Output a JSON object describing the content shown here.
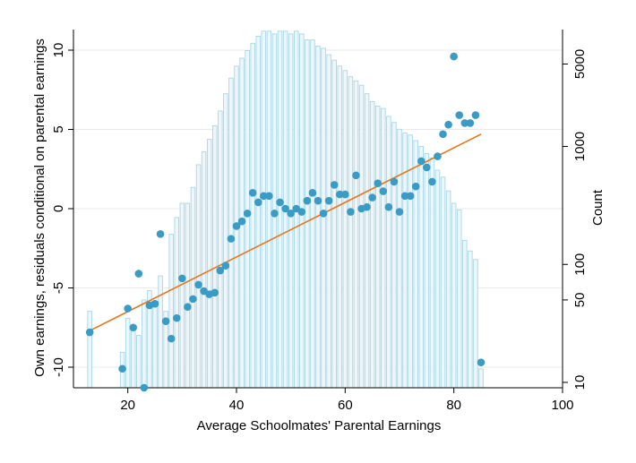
{
  "chart_data": {
    "type": "scatter",
    "title": "",
    "xlabel": "Average Schoolmates' Parental Earnings",
    "ylabel": "Own earnings, residuals conditional on parental earnings",
    "y2label": "Count",
    "xlim": [
      10,
      100
    ],
    "ylim": [
      -11.3,
      11.3
    ],
    "y2scale": "log",
    "y2lim": [
      9,
      9800
    ],
    "grid": true,
    "legend": "none",
    "colors": {
      "points": "#3a9bc4",
      "fit_line": "#e8761e",
      "hist_fill": "#edf7fb",
      "hist_edge": "#a9d6e6",
      "grid": "#eaeaea",
      "axis": "#000000"
    },
    "x_ticks": [
      "20",
      "40",
      "60",
      "80",
      "100"
    ],
    "y_ticks": [
      "-10",
      "-5",
      "0",
      "5",
      "10"
    ],
    "y2_ticks": [
      "10",
      "50",
      "100",
      "1000",
      "5000"
    ],
    "y2_tick_values": [
      10,
      50,
      100,
      1000,
      5000
    ],
    "x_tick_values": [
      20,
      40,
      60,
      80,
      100
    ],
    "y_tick_values": [
      -10,
      -5,
      0,
      5,
      10
    ],
    "series": [
      {
        "type": "scatter",
        "x": [
          13,
          19,
          20,
          21,
          22,
          23,
          24,
          25,
          26,
          27,
          28,
          29,
          30,
          31,
          32,
          33,
          34,
          35,
          36,
          37,
          38,
          39,
          40,
          41,
          42,
          43,
          44,
          45,
          46,
          47,
          48,
          49,
          50,
          51,
          52,
          53,
          54,
          55,
          56,
          57,
          58,
          59,
          60,
          61,
          62,
          63,
          64,
          65,
          66,
          67,
          68,
          69,
          70,
          71,
          72,
          73,
          74,
          75,
          76,
          77,
          78,
          79,
          80,
          81,
          82,
          83,
          84,
          85
        ],
        "y": [
          -7.8,
          -10.1,
          -6.3,
          -7.5,
          -4.1,
          -11.3,
          -6.1,
          -6.0,
          -1.6,
          -7.1,
          -8.2,
          -6.9,
          -4.4,
          -6.2,
          -5.7,
          -4.8,
          -5.2,
          -5.4,
          -5.3,
          -3.9,
          -3.6,
          -1.9,
          -1.1,
          -0.8,
          -0.3,
          1.0,
          0.4,
          0.8,
          0.8,
          -0.3,
          0.4,
          0.0,
          -0.3,
          0.0,
          -0.2,
          0.5,
          1.0,
          0.5,
          -0.3,
          0.5,
          1.5,
          0.9,
          0.9,
          -0.2,
          2.1,
          0.0,
          0.1,
          0.7,
          1.6,
          1.1,
          0.1,
          1.7,
          -0.2,
          0.8,
          0.8,
          1.4,
          3.0,
          2.6,
          1.7,
          3.3,
          4.7,
          5.3,
          9.6,
          5.9,
          5.4,
          5.4,
          5.9,
          -9.7
        ]
      },
      {
        "type": "line",
        "x": [
          13,
          85
        ],
        "y": [
          -7.7,
          4.7
        ]
      },
      {
        "type": "bar",
        "x": [
          13,
          19,
          20,
          21,
          22,
          23,
          24,
          25,
          26,
          27,
          28,
          29,
          30,
          31,
          32,
          33,
          34,
          35,
          36,
          37,
          38,
          39,
          40,
          41,
          42,
          43,
          44,
          45,
          46,
          47,
          48,
          49,
          50,
          51,
          52,
          53,
          54,
          55,
          56,
          57,
          58,
          59,
          60,
          61,
          62,
          63,
          64,
          65,
          66,
          67,
          68,
          69,
          70,
          71,
          72,
          73,
          74,
          75,
          76,
          77,
          78,
          79,
          80,
          81,
          82,
          83,
          84,
          85
        ],
        "values": [
          40,
          18,
          35,
          30,
          25,
          50,
          60,
          45,
          80,
          40,
          180,
          250,
          330,
          330,
          450,
          700,
          900,
          1150,
          1500,
          2000,
          2800,
          3800,
          4800,
          5600,
          6500,
          7500,
          8600,
          9500,
          9500,
          9000,
          9500,
          9500,
          9000,
          9500,
          9000,
          8000,
          8000,
          7100,
          6800,
          6000,
          5400,
          4800,
          4400,
          3900,
          3600,
          3300,
          2800,
          2400,
          2200,
          2100,
          1800,
          1600,
          1400,
          1300,
          1250,
          1120,
          1000,
          870,
          800,
          630,
          550,
          420,
          330,
          290,
          160,
          130,
          110,
          13
        ]
      }
    ]
  }
}
